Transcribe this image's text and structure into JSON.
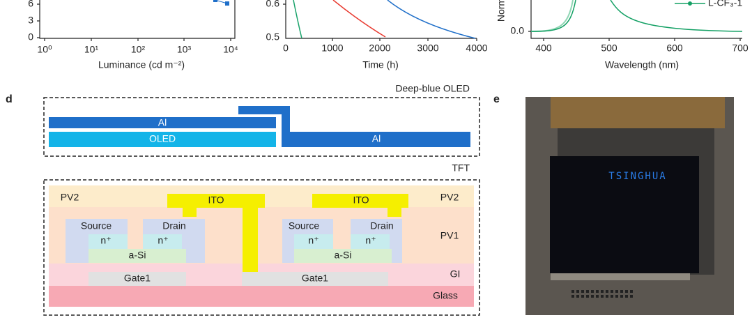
{
  "panel_a": {
    "yticks": [
      "6",
      "3",
      "0"
    ],
    "xticks": [
      "10⁰",
      "10¹",
      "10²",
      "10³",
      "10⁴"
    ],
    "xlabel": "Luminance (cd m⁻²)"
  },
  "panel_b": {
    "yticks": [
      "0.6",
      "0.5"
    ],
    "xticks": [
      "0",
      "1000",
      "2000",
      "3000",
      "4000"
    ],
    "xlabel": "Time (h)"
  },
  "panel_c": {
    "ylabel": "Norm",
    "yticks": [
      "0.0"
    ],
    "xticks": [
      "400",
      "500",
      "600",
      "700"
    ],
    "xlabel": "Wavelength (nm)",
    "legend": "L-CF₃-1"
  },
  "panel_d": {
    "label": "d",
    "oled_title": "Deep-blue OLED",
    "al_left": "Al",
    "oled": "OLED",
    "al_right": "Al",
    "tft_title": "TFT",
    "pv2_left": "PV2",
    "pv2_right": "PV2",
    "ito_left": "ITO",
    "ito_right": "ITO",
    "source_left": "Source",
    "drain_left": "Drain",
    "n_plus": [
      "n⁺",
      "n⁺",
      "n⁺",
      "n⁺"
    ],
    "source_right": "Source",
    "drain_right": "Drain",
    "pv1": "PV1",
    "asi_left": "a-Si",
    "asi_right": "a-Si",
    "gi": "GI",
    "gate_left": "Gate1",
    "gate_right": "Gate1",
    "glass": "Glass"
  },
  "panel_e": {
    "label": "e",
    "display_text": "TSINGHUA"
  }
}
